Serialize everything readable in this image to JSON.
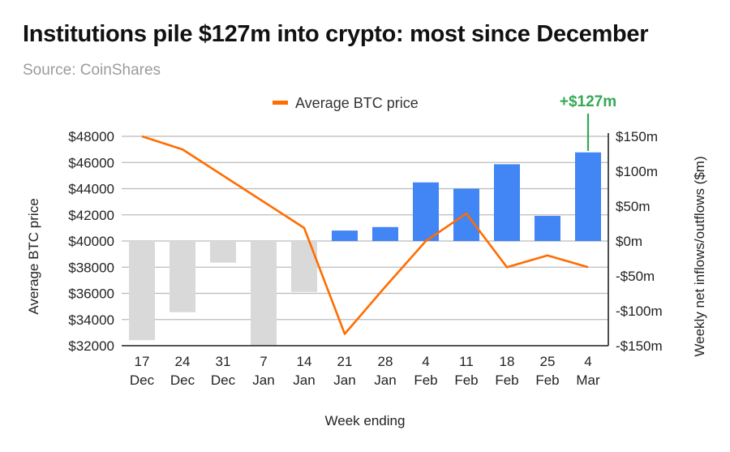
{
  "header": {
    "title": "Institutions pile $127m into crypto: most since December",
    "subtitle": "Source: CoinShares"
  },
  "chart_data": {
    "type": "bar+line",
    "title": "Institutions pile $127m into crypto: most since December",
    "subtitle": "Source: CoinShares",
    "categories": [
      [
        "17",
        "Dec"
      ],
      [
        "24",
        "Dec"
      ],
      [
        "31",
        "Dec"
      ],
      [
        "7",
        "Jan"
      ],
      [
        "14",
        "Jan"
      ],
      [
        "21",
        "Jan"
      ],
      [
        "28",
        "Jan"
      ],
      [
        "4",
        "Feb"
      ],
      [
        "11",
        "Feb"
      ],
      [
        "18",
        "Feb"
      ],
      [
        "25",
        "Feb"
      ],
      [
        "4",
        "Mar"
      ]
    ],
    "xlabel": "Week ending",
    "bars": {
      "name": "Weekly net inflows/outflows ($m)",
      "axis": "right",
      "values": [
        -142,
        -102,
        -31,
        -150,
        -73,
        15,
        20,
        84,
        75,
        110,
        36,
        127
      ],
      "positive_color": "#4285f4",
      "negative_color": "#d9d9d9"
    },
    "line": {
      "name": "Average BTC price",
      "axis": "left",
      "color": "#ff6d01",
      "values": [
        48000,
        47000,
        45000,
        43000,
        41000,
        32900,
        36500,
        40000,
        42100,
        38000,
        38900,
        38000
      ]
    },
    "left_axis": {
      "label": "Average BTC price",
      "ylim": [
        32000,
        48000
      ],
      "ticks": [
        "$48000",
        "$46000",
        "$44000",
        "$42000",
        "$40000",
        "$38000",
        "$36000",
        "$34000",
        "$32000"
      ]
    },
    "right_axis": {
      "label": "Weekly net inflows/outflows ($m)",
      "ylim": [
        -150,
        150
      ],
      "ticks": [
        "$150m",
        "$100m",
        "$50m",
        "$0m",
        "-$50m",
        "-$100m",
        "-$150m"
      ]
    },
    "legend": {
      "label": "Average BTC price",
      "placement": "top-center"
    },
    "annotation": {
      "text": "+$127m",
      "color": "#34a853",
      "target_index": 11
    }
  }
}
